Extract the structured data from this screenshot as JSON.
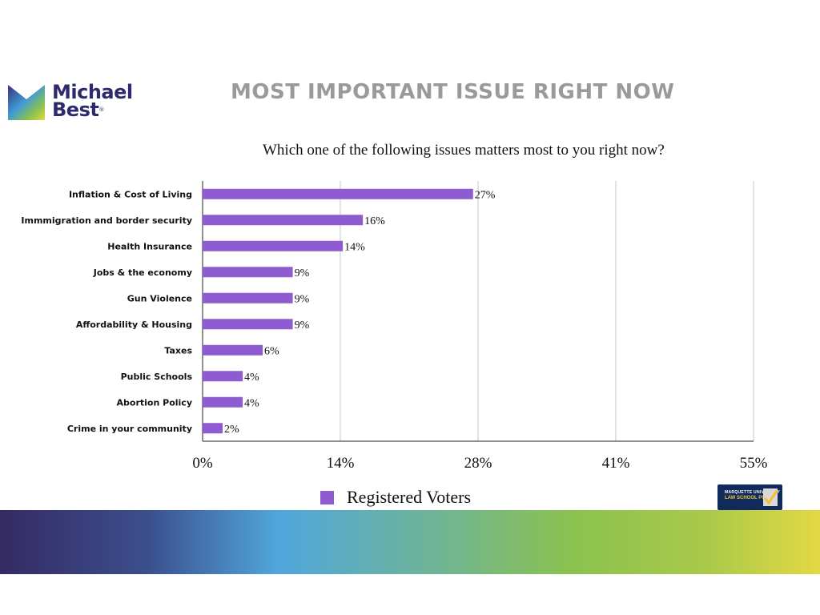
{
  "logo": {
    "line1": "Michael",
    "line2": "Best",
    "trademark": "®"
  },
  "title": "MOST IMPORTANT ISSUE RIGHT NOW",
  "subtitle": "Which one of  the following issues matters most to you right now?",
  "legend": {
    "label": "Registered Voters"
  },
  "partner_logo": {
    "line1": "MARQUETTE UNIVERSITY",
    "line2": "LAW SCHOOL POLL"
  },
  "colors": {
    "bar": "#8f5bd1",
    "title": "#9a9a9a",
    "brand": "#2e2a6e"
  },
  "chart_data": {
    "type": "bar",
    "orientation": "horizontal",
    "title": "MOST IMPORTANT ISSUE RIGHT NOW",
    "subtitle": "Which one of  the following issues matters most to you right now?",
    "categories": [
      "Inflation & Cost of Living",
      "Immmigration and border security",
      "Health Insurance",
      "Jobs & the economy",
      "Gun Violence",
      "Affordability & Housing",
      "Taxes",
      "Public Schools",
      "Abortion Policy",
      "Crime in your community"
    ],
    "series": [
      {
        "name": "Registered Voters",
        "values": [
          27,
          16,
          14,
          9,
          9,
          9,
          6,
          4,
          4,
          2
        ]
      }
    ],
    "value_labels": [
      "27%",
      "16%",
      "14%",
      "9%",
      "9%",
      "9%",
      "6%",
      "4%",
      "4%",
      "2%"
    ],
    "xlim": [
      0,
      55
    ],
    "x_ticks": [
      0,
      13.75,
      27.5,
      41.25,
      55
    ],
    "x_tick_labels": [
      "0%",
      "14%",
      "28%",
      "41%",
      "55%"
    ],
    "grid": true,
    "legend_position": "bottom"
  }
}
